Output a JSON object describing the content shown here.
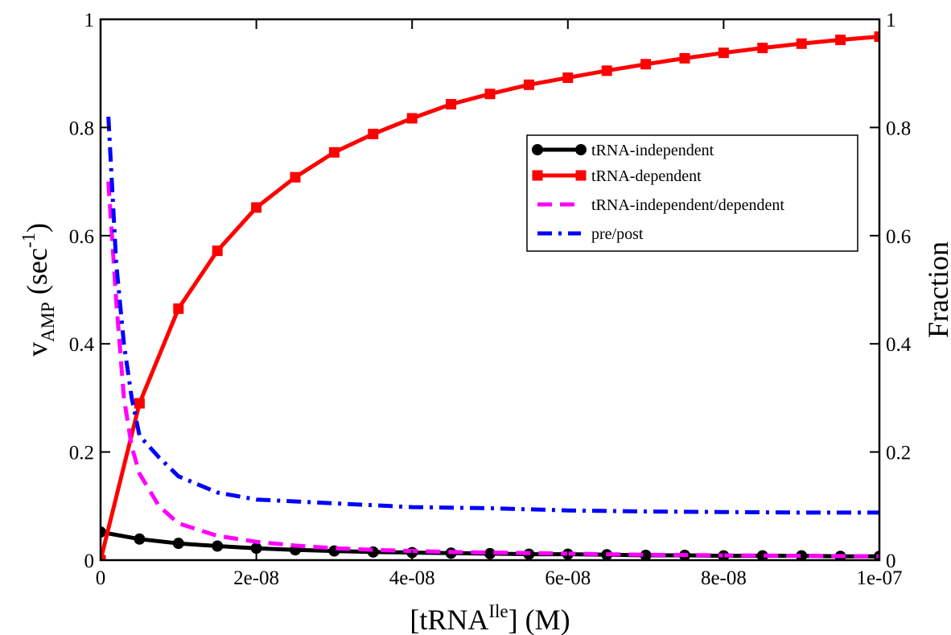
{
  "chart_data": {
    "type": "line",
    "xlabel": {
      "open": "[tRNA",
      "sup": "Ile",
      "close": "] (M)"
    },
    "ylabel_left": {
      "main": "v",
      "sub": "AMP",
      "rest": " (sec",
      "sup": "-1",
      "close": ")"
    },
    "ylabel_right": "Fraction",
    "xlim": [
      0,
      1e-07
    ],
    "ylim": [
      0,
      1
    ],
    "y2lim": [
      0,
      1
    ],
    "x_ticks": [
      {
        "value": 0,
        "label": "0"
      },
      {
        "value": 2e-08,
        "label": "2e-08"
      },
      {
        "value": 4e-08,
        "label": "4e-08"
      },
      {
        "value": 6e-08,
        "label": "6e-08"
      },
      {
        "value": 8e-08,
        "label": "8e-08"
      },
      {
        "value": 1e-07,
        "label": "1e-07"
      }
    ],
    "y_ticks": [
      {
        "value": 0,
        "label": "0"
      },
      {
        "value": 0.2,
        "label": "0.2"
      },
      {
        "value": 0.4,
        "label": "0.4"
      },
      {
        "value": 0.6,
        "label": "0.6"
      },
      {
        "value": 0.8,
        "label": "0.8"
      },
      {
        "value": 1,
        "label": "1"
      }
    ],
    "y2_ticks": [
      {
        "value": 0,
        "label": "0"
      },
      {
        "value": 0.2,
        "label": "0.2"
      },
      {
        "value": 0.4,
        "label": "0.4"
      },
      {
        "value": 0.6,
        "label": "0.6"
      },
      {
        "value": 0.8,
        "label": "0.8"
      },
      {
        "value": 1,
        "label": "1"
      }
    ],
    "legend_position": "top-right",
    "grid": false,
    "series": [
      {
        "name": "tRNA-independent",
        "axis": "left",
        "color": "#000000",
        "style": "solid",
        "marker": "circle",
        "x": [
          0,
          5e-09,
          1e-08,
          1.5e-08,
          2e-08,
          2.5e-08,
          3e-08,
          3.5e-08,
          4e-08,
          4.5e-08,
          5e-08,
          5.5e-08,
          6e-08,
          6.5e-08,
          7e-08,
          7.5e-08,
          8e-08,
          8.5e-08,
          9e-08,
          9.5e-08,
          1e-07
        ],
        "y": [
          0.052,
          0.039,
          0.031,
          0.026,
          0.022,
          0.019,
          0.017,
          0.015,
          0.014,
          0.013,
          0.012,
          0.011,
          0.011,
          0.01,
          0.009,
          0.009,
          0.008,
          0.008,
          0.008,
          0.007,
          0.007
        ]
      },
      {
        "name": "tRNA-dependent",
        "axis": "left",
        "color": "#ff0000",
        "style": "solid",
        "marker": "square",
        "x": [
          0,
          5e-09,
          1e-08,
          1.5e-08,
          2e-08,
          2.5e-08,
          3e-08,
          3.5e-08,
          4e-08,
          4.5e-08,
          5e-08,
          5.5e-08,
          6e-08,
          6.5e-08,
          7e-08,
          7.5e-08,
          8e-08,
          8.5e-08,
          9e-08,
          9.5e-08,
          1e-07
        ],
        "y": [
          0,
          0.29,
          0.465,
          0.572,
          0.652,
          0.708,
          0.754,
          0.788,
          0.817,
          0.843,
          0.862,
          0.879,
          0.892,
          0.905,
          0.917,
          0.928,
          0.938,
          0.947,
          0.955,
          0.962,
          0.968
        ]
      },
      {
        "name": "tRNA-independent/dependent",
        "axis": "right",
        "color": "#ff00ff",
        "style": "dashed",
        "x": [
          1e-09,
          2e-09,
          3e-09,
          4e-09,
          5e-09,
          7.5e-09,
          1e-08,
          1.5e-08,
          2e-08,
          2.5e-08,
          3e-08,
          3.5e-08,
          4e-08,
          4.5e-08,
          5e-08,
          6e-08,
          7e-08,
          8e-08,
          9e-08,
          1e-07
        ],
        "y": [
          0.7,
          0.48,
          0.3,
          0.21,
          0.16,
          0.1,
          0.068,
          0.045,
          0.034,
          0.027,
          0.022,
          0.019,
          0.017,
          0.015,
          0.014,
          0.012,
          0.01,
          0.009,
          0.008,
          0.007
        ]
      },
      {
        "name": "pre/post",
        "axis": "right",
        "color": "#0000ff",
        "style": "dashdot",
        "x": [
          1e-09,
          2e-09,
          3e-09,
          4e-09,
          5e-09,
          7.5e-09,
          1e-08,
          1.5e-08,
          2e-08,
          3e-08,
          4e-08,
          5e-08,
          6e-08,
          7e-08,
          8e-08,
          9e-08,
          1e-07
        ],
        "y": [
          0.82,
          0.55,
          0.4,
          0.3,
          0.23,
          0.19,
          0.155,
          0.125,
          0.112,
          0.105,
          0.098,
          0.096,
          0.092,
          0.09,
          0.089,
          0.088,
          0.088
        ]
      }
    ]
  }
}
